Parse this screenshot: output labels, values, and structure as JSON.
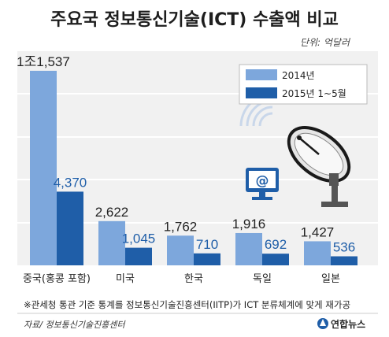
{
  "chart_data": {
    "type": "bar",
    "title": "주요국 정보통신기술(ICT) 수출액 비교",
    "unit_label": "단위: 억달러",
    "categories": [
      "중국(홍콩 포함)",
      "미국",
      "한국",
      "독일",
      "일본"
    ],
    "series": [
      {
        "name": "2014년",
        "color": "#7da7dc",
        "values": [
          11537,
          2622,
          1762,
          1916,
          1427
        ],
        "labels": [
          "1조1,537",
          "2,622",
          "1,762",
          "1,916",
          "1,427"
        ]
      },
      {
        "name": "2015년 1~5월",
        "color": "#1f5ea8",
        "values": [
          4370,
          1045,
          710,
          692,
          536
        ],
        "labels": [
          "4,370",
          "1,045",
          "710",
          "692",
          "536"
        ]
      }
    ],
    "xlabel": "",
    "ylabel": "",
    "ylim": [
      0,
      12000
    ],
    "grid": false,
    "legend_position": "top-right"
  },
  "footnote": "※관세청 통관 기준 통계를 정보통신기술진흥센터(IITP)가 ICT 분류체계에 맞게 재가공",
  "source": "자료/ 정보통신기술진흥센터",
  "brand": "연합뉴스",
  "icons": [
    "satellite-dish-icon",
    "wifi-signal-icon",
    "monitor-at-icon",
    "brand-logo-icon"
  ]
}
